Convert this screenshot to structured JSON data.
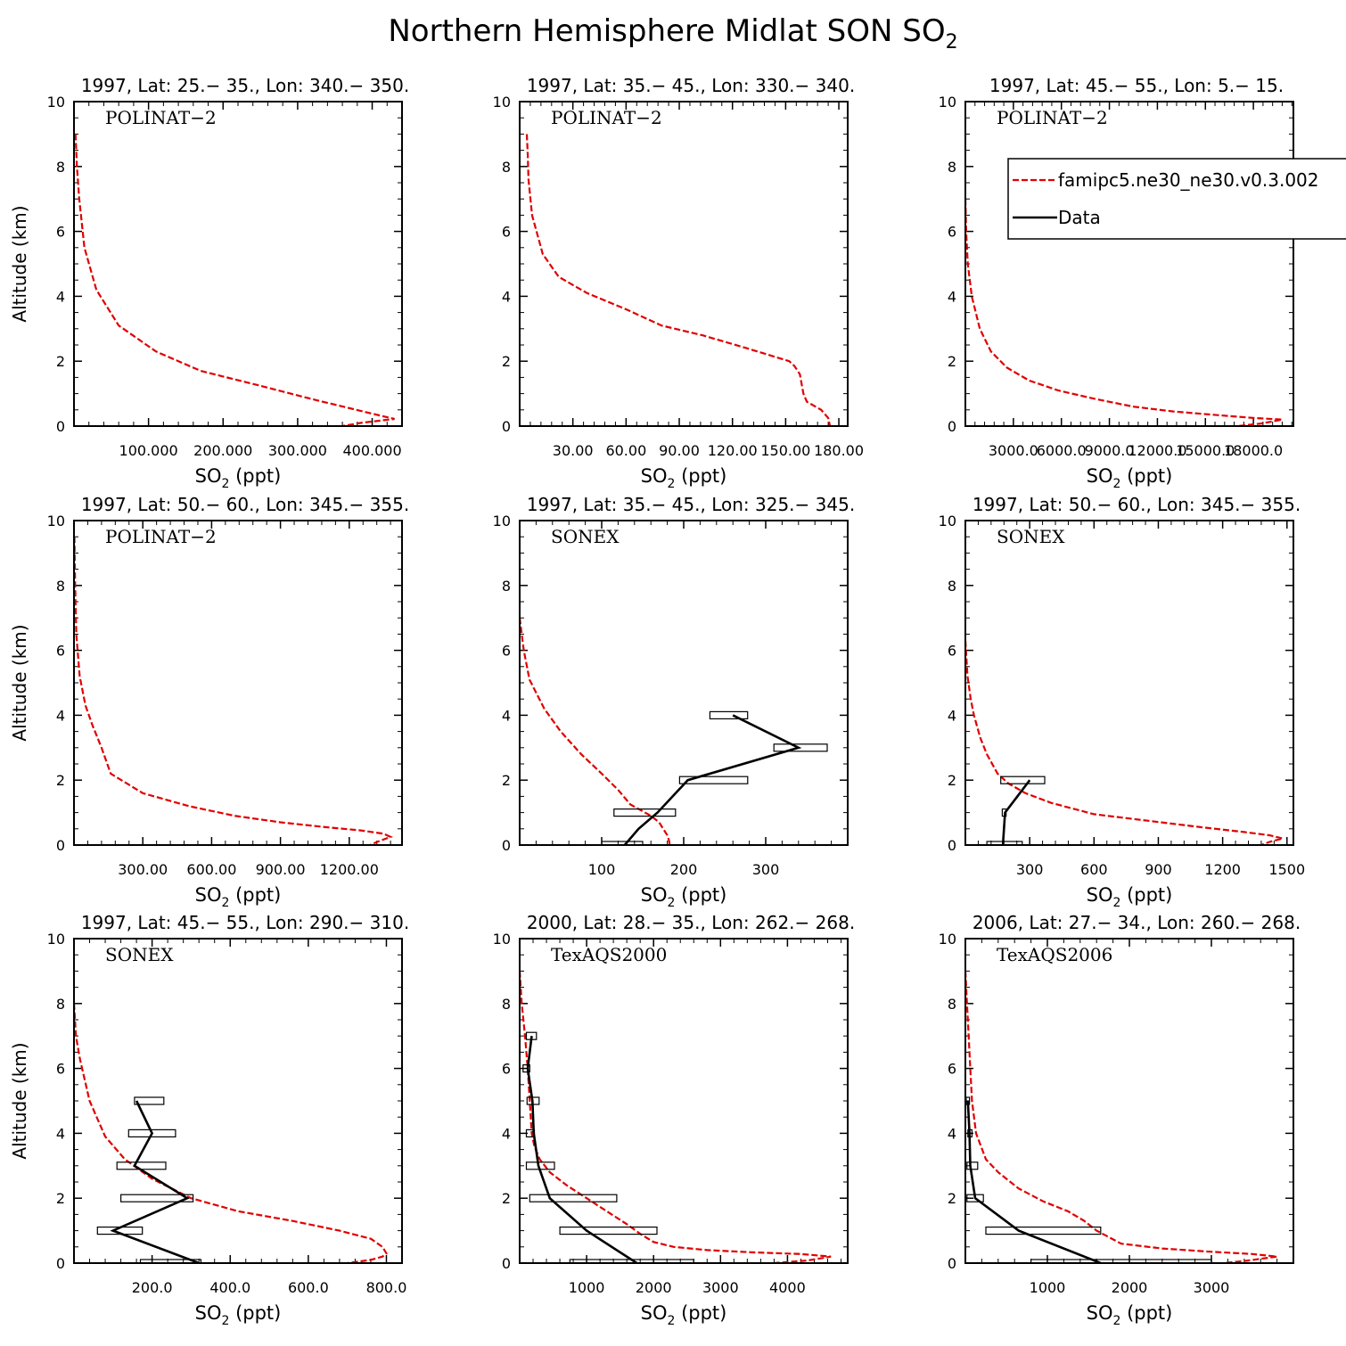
{
  "title": "Northern Hemisphere Midlat SON SO",
  "title_sub": "2",
  "common": {
    "xlabel_main": "SO",
    "xlabel_sub": "2",
    "xlabel_unit": " (ppt)",
    "ylabel": "Altitude (km)",
    "ylim": [
      0,
      10
    ],
    "y_ticks": [
      0,
      2,
      4,
      6,
      8,
      10
    ]
  },
  "legend": {
    "model_label": "famipc5.ne30_ne30.v0.3.002",
    "data_label": "Data",
    "model_color": "#e00000",
    "data_color": "#000000"
  },
  "chart_data": [
    {
      "type": "line",
      "title": "1997, Lat: 25.− 35., Lon: 340.− 350.",
      "campaign": "POLINAT−2",
      "xlim": [
        0,
        440
      ],
      "x_ticks": [
        100,
        200,
        300,
        400
      ],
      "x_tick_labels": [
        "100.000",
        "200.000",
        "300.000",
        "400.000"
      ],
      "model": {
        "x": [
          2,
          4,
          7,
          14,
          30,
          60,
          110,
          170,
          240,
          325,
          370,
          415,
          430,
          385,
          360
        ],
        "y": [
          9,
          8,
          7,
          5.5,
          4.2,
          3.1,
          2.3,
          1.7,
          1.3,
          0.8,
          0.55,
          0.3,
          0.22,
          0.1,
          0
        ]
      },
      "obs": null,
      "legend": false
    },
    {
      "type": "line",
      "title": "1997, Lat: 35.− 45., Lon: 330.− 340.",
      "campaign": "POLINAT−2",
      "xlim": [
        0,
        185
      ],
      "x_ticks": [
        30,
        60,
        90,
        120,
        150,
        180
      ],
      "x_tick_labels": [
        "30.00",
        "60.00",
        "90.00",
        "120.00",
        "150.00",
        "180.00"
      ],
      "model": {
        "x": [
          4,
          4.5,
          5,
          7,
          13,
          22,
          38,
          60,
          80,
          103,
          128,
          152,
          155,
          158,
          160,
          162,
          170,
          174,
          175
        ],
        "y": [
          9,
          8.4,
          7.6,
          6.5,
          5.3,
          4.6,
          4.1,
          3.6,
          3.1,
          2.8,
          2.4,
          2.0,
          1.85,
          1.6,
          1.0,
          0.75,
          0.5,
          0.25,
          0
        ]
      },
      "obs": null,
      "legend": false
    },
    {
      "type": "line",
      "title": "1997, Lat: 45.− 55., Lon: 5.− 15.",
      "campaign": "POLINAT−2",
      "xlim": [
        0,
        20500
      ],
      "x_ticks": [
        3000,
        6000,
        9000,
        12000,
        15000,
        18000
      ],
      "x_tick_labels": [
        "3000.0",
        "6000.0",
        "9000.0",
        "12000.0",
        "15000.0",
        "18000.0"
      ],
      "model": {
        "x": [
          0,
          50,
          150,
          400,
          900,
          1600,
          2600,
          4000,
          5800,
          8000,
          10500,
          13000,
          15500,
          18000,
          19800,
          18500,
          17000
        ],
        "y": [
          7,
          6,
          5,
          4,
          3,
          2.3,
          1.8,
          1.4,
          1.1,
          0.85,
          0.6,
          0.45,
          0.35,
          0.25,
          0.2,
          0.08,
          0
        ]
      },
      "obs": null,
      "legend": true
    },
    {
      "type": "line",
      "title": "1997, Lat: 50.− 60., Lon: 345.− 355.",
      "campaign": "POLINAT−2",
      "xlim": [
        0,
        1430
      ],
      "x_ticks": [
        300,
        600,
        900,
        1200
      ],
      "x_tick_labels": [
        "300.00",
        "600.00",
        "900.00",
        "1200.00"
      ],
      "model": {
        "x": [
          2,
          5,
          10,
          25,
          50,
          80,
          120,
          160,
          300,
          500,
          700,
          900,
          1100,
          1250,
          1350,
          1380,
          1330,
          1290
        ],
        "y": [
          9.5,
          8,
          6.5,
          5.2,
          4.3,
          3.7,
          3.0,
          2.2,
          1.6,
          1.2,
          0.9,
          0.7,
          0.55,
          0.45,
          0.35,
          0.25,
          0.12,
          0
        ]
      },
      "obs": null,
      "legend": false
    },
    {
      "type": "line",
      "title": "1997, Lat: 35.− 45., Lon: 325.− 345.",
      "campaign": "SONEX",
      "xlim": [
        0,
        400
      ],
      "x_ticks": [
        100,
        200,
        300
      ],
      "x_tick_labels": [
        "100",
        "200",
        "300"
      ],
      "model": {
        "x": [
          0,
          5,
          12,
          30,
          50,
          75,
          100,
          120,
          135,
          160,
          170,
          175,
          180,
          182,
          183
        ],
        "y": [
          7,
          6,
          5.1,
          4.2,
          3.5,
          2.8,
          2.2,
          1.7,
          1.25,
          0.9,
          0.7,
          0.5,
          0.3,
          0.15,
          0
        ]
      },
      "obs": {
        "x": [
          128,
          145,
          168,
          205,
          340,
          260
        ],
        "y": [
          0,
          0.5,
          1,
          2,
          3,
          4
        ],
        "boxes": [
          {
            "y": 0,
            "x1": 100,
            "x2": 150
          },
          {
            "y": 1,
            "x1": 115,
            "x2": 190
          },
          {
            "y": 2,
            "x1": 195,
            "x2": 278
          },
          {
            "y": 3,
            "x1": 310,
            "x2": 375
          },
          {
            "y": 4,
            "x1": 232,
            "x2": 278
          }
        ]
      },
      "legend": false
    },
    {
      "type": "line",
      "title": "1997, Lat: 50.− 60., Lon: 345.− 355.",
      "campaign": "SONEX",
      "xlim": [
        0,
        1530
      ],
      "x_ticks": [
        300,
        600,
        900,
        1200,
        1500
      ],
      "x_tick_labels": [
        "300",
        "600",
        "900",
        "1200",
        "1500"
      ],
      "model": {
        "x": [
          0,
          10,
          25,
          40,
          70,
          100,
          150,
          200,
          280,
          400,
          600,
          850,
          1100,
          1300,
          1420,
          1480,
          1420,
          1380
        ],
        "y": [
          6.3,
          5.2,
          4.5,
          4.0,
          3.3,
          2.8,
          2.2,
          1.9,
          1.6,
          1.3,
          0.95,
          0.75,
          0.55,
          0.4,
          0.3,
          0.2,
          0.1,
          0
        ]
      },
      "obs": {
        "x": [
          175,
          180,
          185,
          300
        ],
        "y": [
          0,
          0.5,
          1,
          2
        ],
        "boxes": [
          {
            "y": 0,
            "x1": 100,
            "x2": 265
          },
          {
            "y": 1,
            "x1": 172,
            "x2": 190
          },
          {
            "y": 2,
            "x1": 165,
            "x2": 370
          }
        ]
      },
      "legend": false
    },
    {
      "type": "line",
      "title": "1997, Lat: 45.− 55., Lon: 290.− 310.",
      "campaign": "SONEX",
      "xlim": [
        0,
        840
      ],
      "x_ticks": [
        200,
        400,
        600,
        800
      ],
      "x_tick_labels": [
        "200.0",
        "400.0",
        "600.0",
        "800.0"
      ],
      "model": {
        "x": [
          0,
          5,
          15,
          40,
          80,
          130,
          200,
          300,
          420,
          560,
          680,
          760,
          790,
          800,
          790,
          760,
          700
        ],
        "y": [
          8,
          7,
          6.3,
          5.0,
          3.9,
          3.2,
          2.6,
          2.0,
          1.6,
          1.3,
          1.0,
          0.75,
          0.5,
          0.3,
          0.2,
          0.1,
          0
        ]
      },
      "obs": {
        "x": [
          320,
          100,
          290,
          155,
          200,
          160
        ],
        "y": [
          0,
          1,
          2,
          3,
          4,
          5
        ],
        "boxes": [
          {
            "y": 0,
            "x1": 170,
            "x2": 325
          },
          {
            "y": 1,
            "x1": 60,
            "x2": 175
          },
          {
            "y": 2,
            "x1": 120,
            "x2": 305
          },
          {
            "y": 3,
            "x1": 110,
            "x2": 235
          },
          {
            "y": 4,
            "x1": 140,
            "x2": 260
          },
          {
            "y": 5,
            "x1": 155,
            "x2": 230
          }
        ]
      },
      "legend": false
    },
    {
      "type": "line",
      "title": "2000, Lat: 28.− 35., Lon: 262.− 268.",
      "campaign": "TexAQS2000",
      "xlim": [
        0,
        4900
      ],
      "x_ticks": [
        1000,
        2000,
        3000,
        4000
      ],
      "x_tick_labels": [
        "1000",
        "2000",
        "3000",
        "4000"
      ],
      "model": {
        "x": [
          0,
          30,
          80,
          120,
          150,
          180,
          220,
          300,
          450,
          700,
          1000,
          1300,
          1600,
          1800,
          2000,
          2300,
          2800,
          3500,
          4200,
          4650,
          4300,
          3800
        ],
        "y": [
          9,
          8,
          7,
          6,
          5,
          4,
          3.6,
          3.2,
          2.8,
          2.4,
          2.0,
          1.6,
          1.2,
          0.9,
          0.65,
          0.5,
          0.4,
          0.33,
          0.28,
          0.2,
          0.08,
          0
        ]
      },
      "obs": {
        "x": [
          1750,
          1000,
          450,
          280,
          210,
          190,
          120,
          180
        ],
        "y": [
          0,
          1,
          2,
          3,
          4,
          5,
          6,
          7
        ],
        "boxes": [
          {
            "y": 0,
            "x1": 750,
            "x2": 2600
          },
          {
            "y": 1,
            "x1": 600,
            "x2": 2050
          },
          {
            "y": 2,
            "x1": 150,
            "x2": 1450
          },
          {
            "y": 3,
            "x1": 100,
            "x2": 520
          },
          {
            "y": 4,
            "x1": 100,
            "x2": 220
          },
          {
            "y": 5,
            "x1": 110,
            "x2": 290
          },
          {
            "y": 6,
            "x1": 50,
            "x2": 150
          },
          {
            "y": 7,
            "x1": 100,
            "x2": 250
          }
        ]
      },
      "legend": false
    },
    {
      "type": "line",
      "title": "2006, Lat: 27.− 34., Lon: 260.− 268.",
      "campaign": "TexAQS2006",
      "xlim": [
        0,
        4000
      ],
      "x_ticks": [
        1000,
        2000,
        3000
      ],
      "x_tick_labels": [
        "1000",
        "2000",
        "3000"
      ],
      "model": {
        "x": [
          0,
          20,
          40,
          60,
          80,
          130,
          250,
          400,
          650,
          950,
          1250,
          1450,
          1600,
          1900,
          2400,
          3000,
          3500,
          3800,
          3450,
          3150
        ],
        "y": [
          9,
          8,
          7,
          6,
          5,
          4,
          3.2,
          2.8,
          2.3,
          1.9,
          1.6,
          1.3,
          1.0,
          0.6,
          0.45,
          0.35,
          0.28,
          0.2,
          0.08,
          0
        ]
      },
      "obs": {
        "x": [
          1650,
          650,
          120,
          60,
          50,
          30
        ],
        "y": [
          0,
          1,
          2,
          3,
          4,
          5
        ],
        "boxes": [
          {
            "y": 0,
            "x1": 800,
            "x2": 3000
          },
          {
            "y": 1,
            "x1": 250,
            "x2": 1650
          },
          {
            "y": 2,
            "x1": 20,
            "x2": 220
          },
          {
            "y": 3,
            "x1": 20,
            "x2": 150
          },
          {
            "y": 4,
            "x1": 30,
            "x2": 80
          },
          {
            "y": 5,
            "x1": 10,
            "x2": 50
          }
        ]
      },
      "legend": false
    }
  ]
}
